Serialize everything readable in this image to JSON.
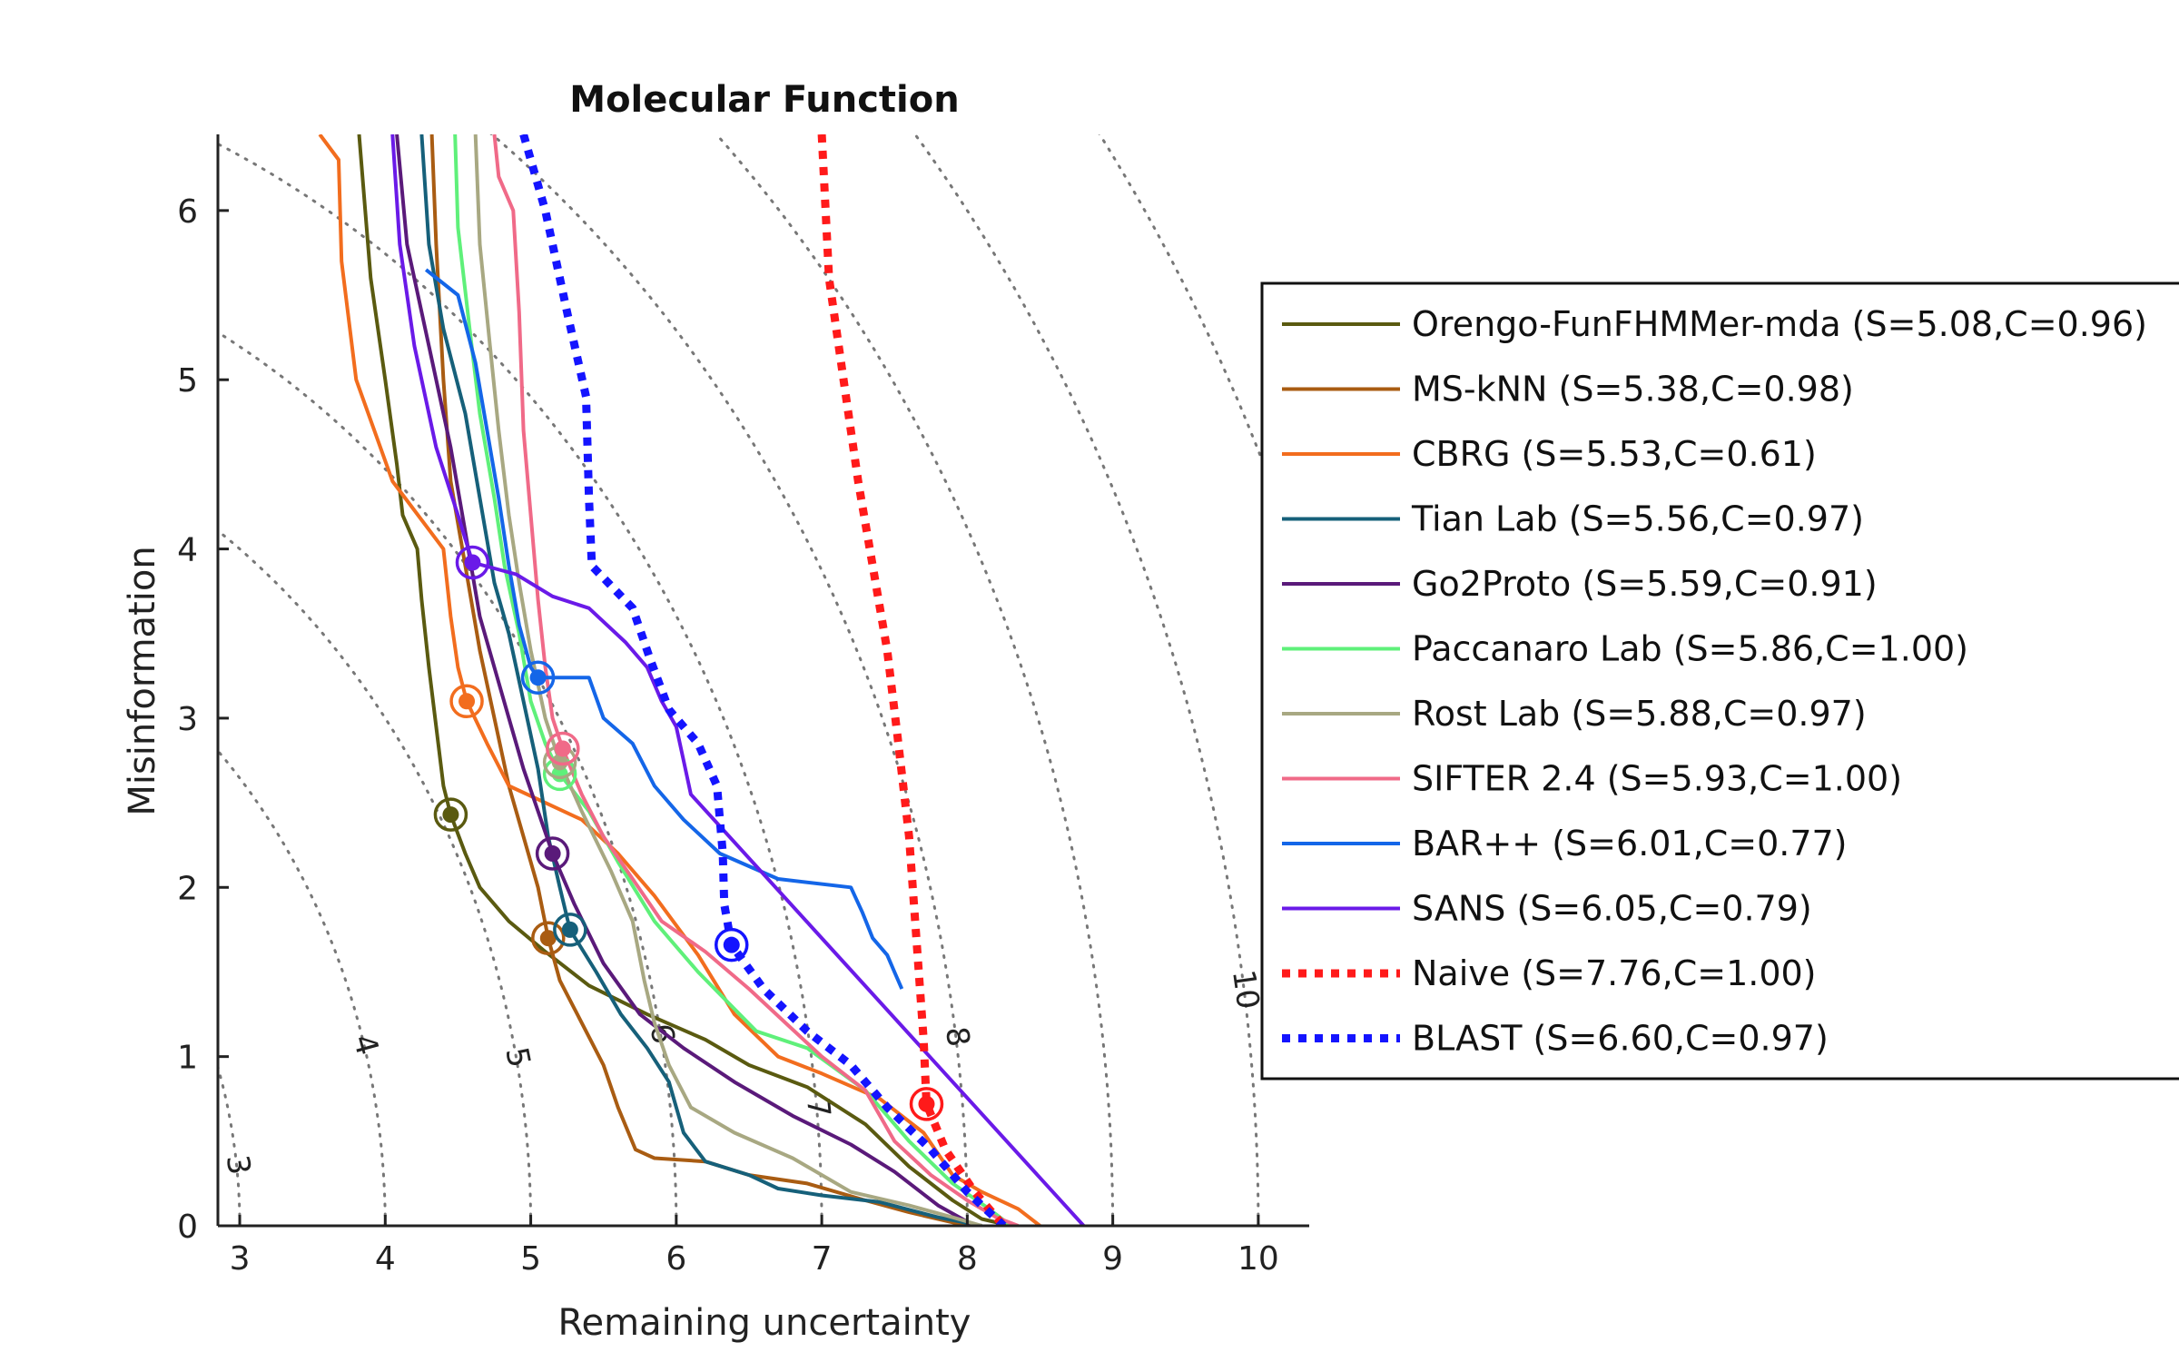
{
  "chart_data": {
    "type": "line",
    "title": "Molecular Function",
    "xlabel": "Remaining uncertainty",
    "ylabel": "Misinformation",
    "xlim": [
      2.85,
      10.35
    ],
    "ylim": [
      0,
      6.45
    ],
    "xticks": [
      3,
      4,
      5,
      6,
      7,
      8,
      9,
      10
    ],
    "yticks": [
      0,
      1,
      2,
      3,
      4,
      5,
      6
    ],
    "grid": false,
    "legend_position": "right",
    "iso_contours": [
      {
        "label": "3",
        "value": 3
      },
      {
        "label": "4",
        "value": 4
      },
      {
        "label": "5",
        "value": 5
      },
      {
        "label": "6",
        "value": 6
      },
      {
        "label": "7",
        "value": 7
      },
      {
        "label": "8",
        "value": 8
      },
      {
        "label": "9",
        "value": 9
      },
      {
        "label": "10",
        "value": 10
      },
      {
        "label": "11",
        "value": 11
      }
    ],
    "series": [
      {
        "name": "Orengo-FunFHMMer-mda (S=5.08,C=0.96)",
        "color": "#5a5a10",
        "style": "solid",
        "marker": [
          4.45,
          2.43
        ],
        "points": [
          [
            3.82,
            6.45
          ],
          [
            3.9,
            5.6
          ],
          [
            4.0,
            5.0
          ],
          [
            4.08,
            4.5
          ],
          [
            4.12,
            4.2
          ],
          [
            4.22,
            4.0
          ],
          [
            4.25,
            3.7
          ],
          [
            4.3,
            3.3
          ],
          [
            4.35,
            2.95
          ],
          [
            4.4,
            2.6
          ],
          [
            4.45,
            2.43
          ],
          [
            4.55,
            2.2
          ],
          [
            4.65,
            2.0
          ],
          [
            4.85,
            1.8
          ],
          [
            5.1,
            1.62
          ],
          [
            5.4,
            1.42
          ],
          [
            5.8,
            1.25
          ],
          [
            6.2,
            1.1
          ],
          [
            6.5,
            0.95
          ],
          [
            6.9,
            0.82
          ],
          [
            7.3,
            0.6
          ],
          [
            7.6,
            0.35
          ],
          [
            7.9,
            0.15
          ],
          [
            8.1,
            0.04
          ],
          [
            8.3,
            0.0
          ]
        ]
      },
      {
        "name": "MS-kNN (S=5.38,C=0.98)",
        "color": "#a95c12",
        "style": "solid",
        "marker": [
          5.12,
          1.7
        ],
        "points": [
          [
            4.32,
            6.45
          ],
          [
            4.35,
            5.8
          ],
          [
            4.4,
            5.0
          ],
          [
            4.45,
            4.4
          ],
          [
            4.55,
            3.9
          ],
          [
            4.65,
            3.4
          ],
          [
            4.75,
            3.0
          ],
          [
            4.85,
            2.6
          ],
          [
            4.95,
            2.3
          ],
          [
            5.05,
            2.0
          ],
          [
            5.12,
            1.7
          ],
          [
            5.2,
            1.45
          ],
          [
            5.35,
            1.2
          ],
          [
            5.5,
            0.95
          ],
          [
            5.6,
            0.7
          ],
          [
            5.72,
            0.45
          ],
          [
            5.85,
            0.4
          ],
          [
            6.2,
            0.38
          ],
          [
            6.5,
            0.3
          ],
          [
            6.9,
            0.25
          ],
          [
            7.3,
            0.15
          ],
          [
            7.6,
            0.08
          ],
          [
            8.0,
            0.0
          ]
        ]
      },
      {
        "name": "CBRG (S=5.53,C=0.61)",
        "color": "#f26d1e",
        "style": "solid",
        "marker": [
          4.56,
          3.1
        ],
        "points": [
          [
            3.55,
            6.45
          ],
          [
            3.68,
            6.3
          ],
          [
            3.7,
            5.7
          ],
          [
            3.8,
            5.0
          ],
          [
            4.05,
            4.4
          ],
          [
            4.4,
            4.0
          ],
          [
            4.45,
            3.6
          ],
          [
            4.5,
            3.3
          ],
          [
            4.56,
            3.1
          ],
          [
            4.7,
            2.85
          ],
          [
            4.85,
            2.6
          ],
          [
            5.1,
            2.5
          ],
          [
            5.35,
            2.4
          ],
          [
            5.6,
            2.2
          ],
          [
            5.85,
            1.95
          ],
          [
            6.15,
            1.6
          ],
          [
            6.4,
            1.25
          ],
          [
            6.7,
            1.0
          ],
          [
            7.0,
            0.9
          ],
          [
            7.4,
            0.75
          ],
          [
            7.7,
            0.55
          ],
          [
            7.9,
            0.3
          ],
          [
            8.1,
            0.2
          ],
          [
            8.35,
            0.1
          ],
          [
            8.5,
            0.0
          ]
        ]
      },
      {
        "name": "Tian Lab (S=5.56,C=0.97)",
        "color": "#16607a",
        "style": "solid",
        "marker": [
          5.27,
          1.75
        ],
        "points": [
          [
            4.25,
            6.45
          ],
          [
            4.3,
            5.8
          ],
          [
            4.4,
            5.3
          ],
          [
            4.55,
            4.8
          ],
          [
            4.65,
            4.3
          ],
          [
            4.75,
            3.8
          ],
          [
            4.85,
            3.5
          ],
          [
            4.95,
            3.1
          ],
          [
            5.05,
            2.7
          ],
          [
            5.12,
            2.3
          ],
          [
            5.2,
            2.0
          ],
          [
            5.27,
            1.75
          ],
          [
            5.45,
            1.5
          ],
          [
            5.62,
            1.25
          ],
          [
            5.8,
            1.05
          ],
          [
            5.95,
            0.85
          ],
          [
            6.05,
            0.55
          ],
          [
            6.2,
            0.38
          ],
          [
            6.5,
            0.3
          ],
          [
            6.7,
            0.22
          ],
          [
            7.0,
            0.18
          ],
          [
            7.4,
            0.14
          ],
          [
            7.8,
            0.05
          ],
          [
            8.1,
            0.0
          ]
        ]
      },
      {
        "name": "Go2Proto (S=5.59,C=0.91)",
        "color": "#5a1a7a",
        "style": "solid",
        "marker": [
          5.15,
          2.2
        ],
        "points": [
          [
            4.08,
            6.45
          ],
          [
            4.15,
            5.8
          ],
          [
            4.3,
            5.2
          ],
          [
            4.45,
            4.6
          ],
          [
            4.55,
            4.1
          ],
          [
            4.65,
            3.6
          ],
          [
            4.75,
            3.3
          ],
          [
            4.85,
            3.0
          ],
          [
            4.95,
            2.7
          ],
          [
            5.05,
            2.45
          ],
          [
            5.15,
            2.2
          ],
          [
            5.3,
            1.9
          ],
          [
            5.5,
            1.55
          ],
          [
            5.75,
            1.25
          ],
          [
            6.05,
            1.05
          ],
          [
            6.4,
            0.85
          ],
          [
            6.8,
            0.65
          ],
          [
            7.2,
            0.48
          ],
          [
            7.5,
            0.32
          ],
          [
            7.8,
            0.12
          ],
          [
            8.05,
            0.0
          ]
        ]
      },
      {
        "name": "Paccanaro Lab (S=5.86,C=1.00)",
        "color": "#5ff07a",
        "style": "solid",
        "marker": [
          5.2,
          2.67
        ],
        "points": [
          [
            4.48,
            6.45
          ],
          [
            4.5,
            5.9
          ],
          [
            4.58,
            5.3
          ],
          [
            4.65,
            4.8
          ],
          [
            4.75,
            4.3
          ],
          [
            4.82,
            3.9
          ],
          [
            4.92,
            3.5
          ],
          [
            5.0,
            3.1
          ],
          [
            5.1,
            2.85
          ],
          [
            5.2,
            2.67
          ],
          [
            5.4,
            2.45
          ],
          [
            5.6,
            2.15
          ],
          [
            5.85,
            1.8
          ],
          [
            6.15,
            1.5
          ],
          [
            6.55,
            1.15
          ],
          [
            6.9,
            1.05
          ],
          [
            7.3,
            0.8
          ],
          [
            7.6,
            0.5
          ],
          [
            7.9,
            0.25
          ],
          [
            8.15,
            0.1
          ],
          [
            8.3,
            0.0
          ]
        ]
      },
      {
        "name": "Rost Lab (S=5.88,C=0.97)",
        "color": "#a8a882",
        "style": "solid",
        "marker": [
          5.2,
          2.74
        ],
        "points": [
          [
            4.62,
            6.45
          ],
          [
            4.65,
            5.8
          ],
          [
            4.72,
            5.2
          ],
          [
            4.78,
            4.7
          ],
          [
            4.85,
            4.2
          ],
          [
            4.92,
            3.8
          ],
          [
            5.0,
            3.4
          ],
          [
            5.1,
            3.0
          ],
          [
            5.2,
            2.74
          ],
          [
            5.35,
            2.45
          ],
          [
            5.55,
            2.1
          ],
          [
            5.7,
            1.8
          ],
          [
            5.78,
            1.45
          ],
          [
            5.85,
            1.2
          ],
          [
            5.95,
            0.95
          ],
          [
            6.1,
            0.7
          ],
          [
            6.4,
            0.55
          ],
          [
            6.8,
            0.4
          ],
          [
            7.2,
            0.2
          ],
          [
            7.6,
            0.12
          ],
          [
            7.9,
            0.05
          ],
          [
            8.1,
            0.0
          ]
        ]
      },
      {
        "name": "SIFTER 2.4 (S=5.93,C=1.00)",
        "color": "#f06a88",
        "style": "solid",
        "marker": [
          5.22,
          2.82
        ],
        "points": [
          [
            4.75,
            6.45
          ],
          [
            4.78,
            6.2
          ],
          [
            4.88,
            6.0
          ],
          [
            4.92,
            5.4
          ],
          [
            4.95,
            4.7
          ],
          [
            5.0,
            4.2
          ],
          [
            5.05,
            3.7
          ],
          [
            5.1,
            3.3
          ],
          [
            5.15,
            3.0
          ],
          [
            5.22,
            2.82
          ],
          [
            5.35,
            2.55
          ],
          [
            5.5,
            2.3
          ],
          [
            5.7,
            2.05
          ],
          [
            5.9,
            1.8
          ],
          [
            6.2,
            1.62
          ],
          [
            6.5,
            1.4
          ],
          [
            6.75,
            1.2
          ],
          [
            7.0,
            1.0
          ],
          [
            7.3,
            0.8
          ],
          [
            7.5,
            0.5
          ],
          [
            7.75,
            0.3
          ],
          [
            8.0,
            0.15
          ],
          [
            8.2,
            0.05
          ],
          [
            8.35,
            0.0
          ]
        ]
      },
      {
        "name": "BAR++ (S=6.01,C=0.77)",
        "color": "#1466e8",
        "style": "solid",
        "marker": [
          5.05,
          3.24
        ],
        "points": [
          [
            4.28,
            5.65
          ],
          [
            4.5,
            5.5
          ],
          [
            4.62,
            5.1
          ],
          [
            4.7,
            4.7
          ],
          [
            4.78,
            4.3
          ],
          [
            4.85,
            3.9
          ],
          [
            4.92,
            3.55
          ],
          [
            5.0,
            3.3
          ],
          [
            5.05,
            3.24
          ],
          [
            5.4,
            3.24
          ],
          [
            5.5,
            3.0
          ],
          [
            5.7,
            2.85
          ],
          [
            5.85,
            2.6
          ],
          [
            6.05,
            2.4
          ],
          [
            6.3,
            2.2
          ],
          [
            6.7,
            2.05
          ],
          [
            7.2,
            2.0
          ],
          [
            7.28,
            1.85
          ],
          [
            7.35,
            1.7
          ],
          [
            7.45,
            1.6
          ],
          [
            7.5,
            1.5
          ],
          [
            7.55,
            1.4
          ]
        ]
      },
      {
        "name": "SANS (S=6.05,C=0.79)",
        "color": "#6a1ae8",
        "style": "solid",
        "marker": [
          4.6,
          3.92
        ],
        "points": [
          [
            4.05,
            6.45
          ],
          [
            4.1,
            5.8
          ],
          [
            4.2,
            5.2
          ],
          [
            4.35,
            4.6
          ],
          [
            4.5,
            4.2
          ],
          [
            4.6,
            3.92
          ],
          [
            4.9,
            3.85
          ],
          [
            5.15,
            3.72
          ],
          [
            5.4,
            3.65
          ],
          [
            5.65,
            3.45
          ],
          [
            5.8,
            3.3
          ],
          [
            5.9,
            3.1
          ],
          [
            6.0,
            2.95
          ],
          [
            6.05,
            2.75
          ],
          [
            6.1,
            2.55
          ],
          [
            8.8,
            0.0
          ]
        ]
      },
      {
        "name": "Naive (S=7.76,C=1.00)",
        "color": "#ff1a1a",
        "style": "dotted",
        "marker": [
          7.72,
          0.72
        ],
        "points": [
          [
            7.0,
            6.45
          ],
          [
            7.05,
            5.6
          ],
          [
            7.15,
            5.0
          ],
          [
            7.25,
            4.4
          ],
          [
            7.35,
            3.9
          ],
          [
            7.45,
            3.4
          ],
          [
            7.52,
            2.9
          ],
          [
            7.6,
            2.3
          ],
          [
            7.65,
            1.7
          ],
          [
            7.7,
            1.1
          ],
          [
            7.72,
            0.72
          ],
          [
            7.85,
            0.45
          ],
          [
            8.05,
            0.2
          ],
          [
            8.25,
            0.0
          ]
        ]
      },
      {
        "name": "BLAST (S=6.60,C=0.97)",
        "color": "#1414ff",
        "style": "dotted",
        "marker": [
          6.38,
          1.66
        ],
        "points": [
          [
            4.95,
            6.45
          ],
          [
            5.1,
            6.0
          ],
          [
            5.25,
            5.4
          ],
          [
            5.38,
            4.9
          ],
          [
            5.4,
            4.3
          ],
          [
            5.42,
            3.9
          ],
          [
            5.7,
            3.65
          ],
          [
            5.82,
            3.35
          ],
          [
            5.95,
            3.05
          ],
          [
            6.15,
            2.85
          ],
          [
            6.28,
            2.6
          ],
          [
            6.32,
            2.2
          ],
          [
            6.33,
            1.9
          ],
          [
            6.38,
            1.66
          ],
          [
            6.6,
            1.4
          ],
          [
            6.9,
            1.15
          ],
          [
            7.2,
            0.95
          ],
          [
            7.45,
            0.7
          ],
          [
            7.75,
            0.45
          ],
          [
            8.0,
            0.2
          ],
          [
            8.25,
            0.0
          ]
        ]
      }
    ]
  }
}
